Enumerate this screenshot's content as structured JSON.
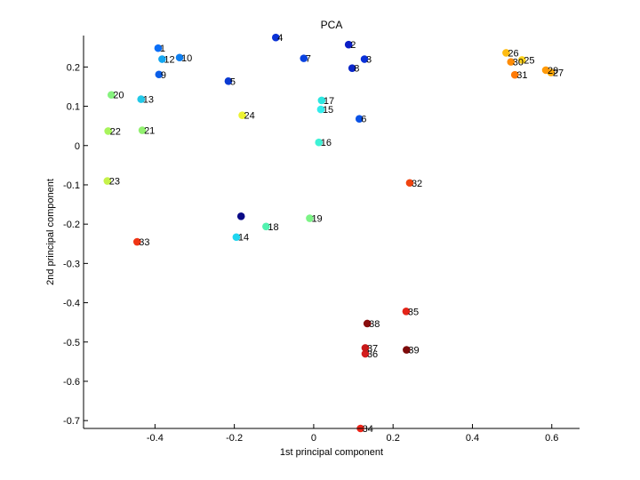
{
  "chart_data": {
    "type": "scatter",
    "title": "PCA",
    "xlabel": "1st principal component",
    "ylabel": "2nd principal component",
    "xlim": [
      -0.58,
      0.67
    ],
    "ylim": [
      -0.72,
      0.28
    ],
    "grid": false,
    "xticks": [
      -0.4,
      -0.2,
      0,
      0.2,
      0.4,
      0.6
    ],
    "xtick_labels": [
      "-0.4",
      "-0.2",
      "0",
      "0.2",
      "0.4",
      "0.6"
    ],
    "yticks": [
      -0.7,
      -0.6,
      -0.5,
      -0.4,
      -0.3,
      -0.2,
      -0.1,
      0,
      0.1,
      0.2
    ],
    "ytick_labels": [
      "-0.7",
      "-0.6",
      "-0.5",
      "-0.4",
      "-0.3",
      "-0.2",
      "-0.1",
      "0",
      "0.1",
      "0.2"
    ],
    "points": [
      {
        "label": "1",
        "x": -0.392,
        "y": 0.248,
        "color": "#0b6ef7"
      },
      {
        "label": "2",
        "x": 0.088,
        "y": 0.257,
        "color": "#0a1ec6"
      },
      {
        "label": "3",
        "x": 0.128,
        "y": 0.22,
        "color": "#0a30d8"
      },
      {
        "label": "4",
        "x": -0.0955,
        "y": 0.275,
        "color": "#0a32d6"
      },
      {
        "label": "5",
        "x": -0.215,
        "y": 0.164,
        "color": "#0a3ad2"
      },
      {
        "label": "6",
        "x": 0.115,
        "y": 0.068,
        "color": "#0a52e6"
      },
      {
        "label": "7",
        "x": -0.025,
        "y": 0.222,
        "color": "#0a42e0"
      },
      {
        "label": "8",
        "x": 0.097,
        "y": 0.197,
        "color": "#0a26c8"
      },
      {
        "label": "9",
        "x": -0.39,
        "y": 0.181,
        "color": "#0a5ee8"
      },
      {
        "label": "10",
        "x": -0.338,
        "y": 0.224,
        "color": "#0f7ff0"
      },
      {
        "label": "12",
        "x": -0.382,
        "y": 0.22,
        "color": "#13a6f0"
      },
      {
        "label": "13",
        "x": -0.435,
        "y": 0.118,
        "color": "#22c8e8"
      },
      {
        "label": "14",
        "x": -0.195,
        "y": -0.233,
        "color": "#1fd6f0"
      },
      {
        "label": "15",
        "x": 0.018,
        "y": 0.092,
        "color": "#34ecec"
      },
      {
        "label": "16",
        "x": 0.013,
        "y": 0.008,
        "color": "#3ef2d6"
      },
      {
        "label": "17",
        "x": 0.02,
        "y": 0.115,
        "color": "#2ee6e0"
      },
      {
        "label": "18",
        "x": -0.12,
        "y": -0.206,
        "color": "#52f2b0"
      },
      {
        "label": "19",
        "x": -0.01,
        "y": -0.185,
        "color": "#7cf486"
      },
      {
        "label": "20",
        "x": -0.51,
        "y": 0.129,
        "color": "#86f27e"
      },
      {
        "label": "21",
        "x": -0.432,
        "y": 0.039,
        "color": "#92f070"
      },
      {
        "label": "22",
        "x": -0.518,
        "y": 0.037,
        "color": "#a8f45c"
      },
      {
        "label": "23",
        "x": -0.52,
        "y": -0.09,
        "color": "#c6f24a"
      },
      {
        "label": "24",
        "x": -0.18,
        "y": 0.077,
        "color": "#ecf232"
      },
      {
        "label": "25",
        "x": 0.525,
        "y": 0.218,
        "color": "#ffd21e"
      },
      {
        "label": "26",
        "x": 0.485,
        "y": 0.236,
        "color": "#ffbc12"
      },
      {
        "label": "27",
        "x": 0.598,
        "y": 0.186,
        "color": "#ffaa0a"
      },
      {
        "label": "29",
        "x": 0.585,
        "y": 0.192,
        "color": "#ff9a08"
      },
      {
        "label": "30",
        "x": 0.497,
        "y": 0.213,
        "color": "#ff8c06"
      },
      {
        "label": "31",
        "x": 0.507,
        "y": 0.18,
        "color": "#ff7a06"
      },
      {
        "label": "32",
        "x": 0.242,
        "y": -0.095,
        "color": "#f04410"
      },
      {
        "label": "33",
        "x": -0.445,
        "y": -0.245,
        "color": "#f03414"
      },
      {
        "label": "34",
        "x": 0.118,
        "y": -0.72,
        "color": "#ee2418"
      },
      {
        "label": "35",
        "x": 0.233,
        "y": -0.422,
        "color": "#e42418"
      },
      {
        "label": "36",
        "x": 0.13,
        "y": -0.53,
        "color": "#d41e1e"
      },
      {
        "label": "37",
        "x": 0.13,
        "y": -0.515,
        "color": "#c81818"
      },
      {
        "label": "38",
        "x": 0.135,
        "y": -0.453,
        "color": "#8a0e0e"
      },
      {
        "label": "39",
        "x": 0.234,
        "y": -0.52,
        "color": "#7e0a0a"
      },
      {
        "label": "",
        "x": -0.183,
        "y": -0.18,
        "color": "#0a0a86"
      }
    ]
  }
}
